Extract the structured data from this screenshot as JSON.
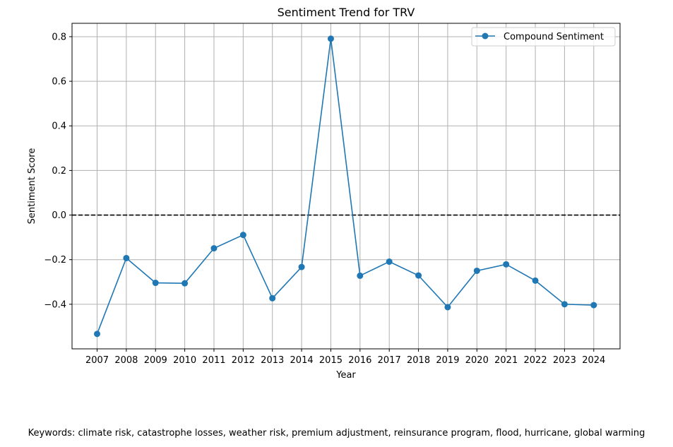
{
  "chart_data": {
    "type": "line",
    "title": "Sentiment Trend for TRV",
    "xlabel": "Year",
    "ylabel": "Sentiment Score",
    "categories": [
      "2007",
      "2008",
      "2009",
      "2010",
      "2011",
      "2012",
      "2013",
      "2014",
      "2015",
      "2016",
      "2017",
      "2018",
      "2019",
      "2020",
      "2021",
      "2022",
      "2023",
      "2024"
    ],
    "series": [
      {
        "name": "Compound Sentiment",
        "color": "#1f77b4",
        "marker": "circle",
        "values": [
          -0.533,
          -0.193,
          -0.304,
          -0.306,
          -0.149,
          -0.089,
          -0.373,
          -0.233,
          0.791,
          -0.272,
          -0.209,
          -0.271,
          -0.413,
          -0.25,
          -0.221,
          -0.294,
          -0.4,
          -0.404
        ]
      }
    ],
    "ylim": [
      -0.6,
      0.86
    ],
    "yticks": [
      0.8,
      0.6,
      0.4,
      0.2,
      0.0,
      -0.2,
      -0.4
    ],
    "ytick_labels": [
      "0.8",
      "0.6",
      "0.4",
      "0.2",
      "0.0",
      "−0.2",
      "−0.4"
    ],
    "reference_line": {
      "y": 0.0,
      "style": "dashed",
      "color": "#000000"
    },
    "grid": true,
    "legend_position": "top-right"
  },
  "footer": {
    "keywords_text": "Keywords: climate risk, catastrophe losses, weather risk, premium adjustment, reinsurance program, flood, hurricane, global warming"
  }
}
